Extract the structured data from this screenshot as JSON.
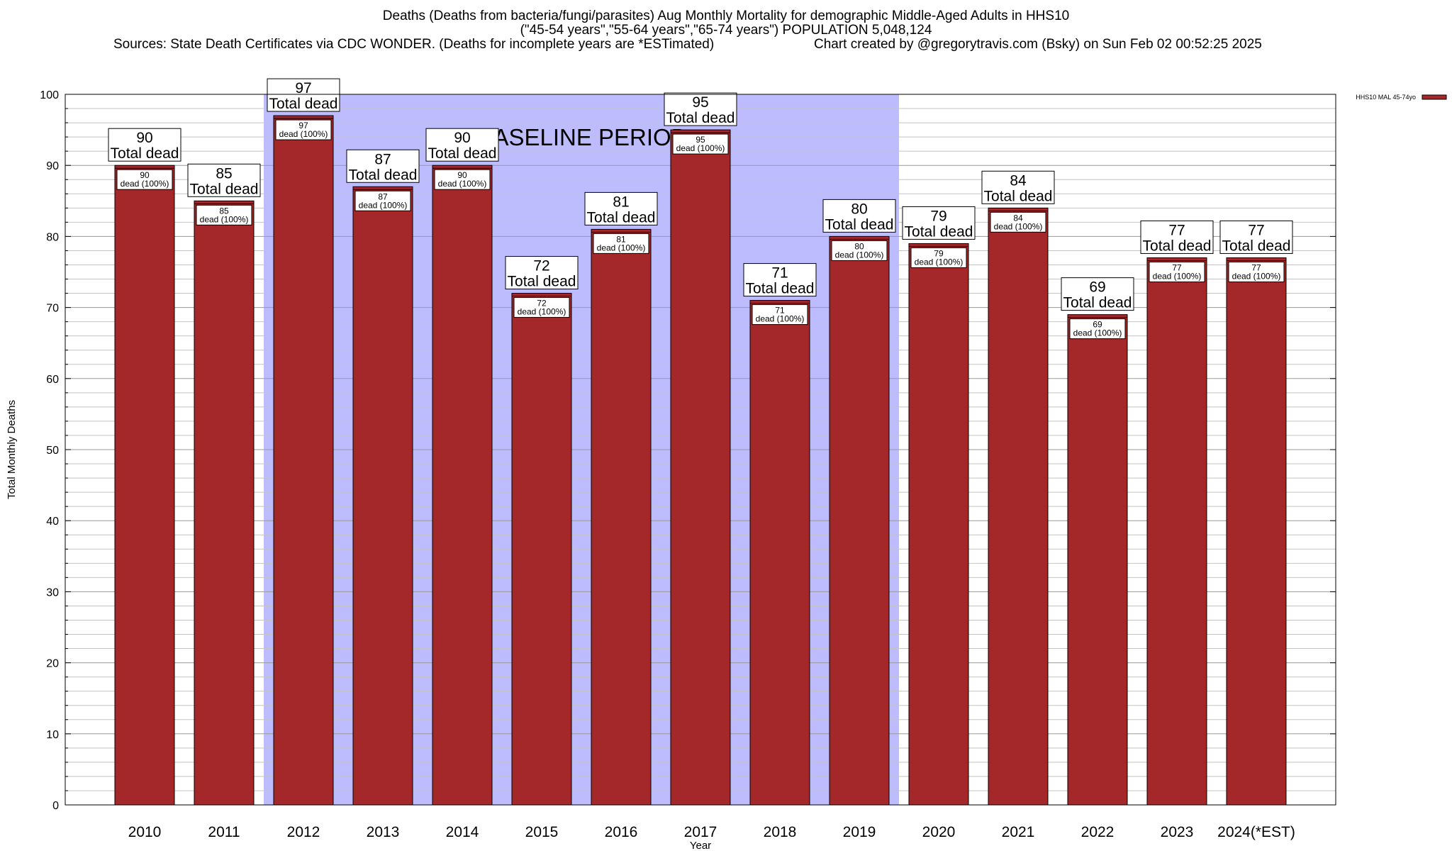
{
  "title": {
    "line1": "Deaths (Deaths from bacteria/fungi/parasites) Aug Monthly Mortality for demographic Middle-Aged Adults in HHS10",
    "line2": "(\"45-54 years\",\"55-64 years\",\"65-74 years\") POPULATION 5,048,124",
    "source": "Sources: State Death Certificates via CDC WONDER. (Deaths for incomplete years are *ESTimated)",
    "credit": "Chart created by @gregorytravis.com (Bsky) on Sun Feb 02 00:52:25 2025"
  },
  "chart_data": {
    "type": "bar",
    "categories": [
      "2010",
      "2011",
      "2012",
      "2013",
      "2014",
      "2015",
      "2016",
      "2017",
      "2018",
      "2019",
      "2020",
      "2021",
      "2022",
      "2023",
      "2024(*EST)"
    ],
    "series": [
      {
        "name": "HHS10 MAL 45-74yo",
        "values": [
          90,
          85,
          97,
          87,
          90,
          72,
          81,
          95,
          71,
          80,
          79,
          84,
          69,
          77,
          77
        ],
        "color": "#a4282a"
      }
    ],
    "total_label_suffix": "Total dead",
    "bar_label_suffix": "dead (100%)",
    "xlabel": "Year",
    "ylabel": "Total Monthly Deaths",
    "ylim": [
      0,
      100
    ],
    "yticks": [
      0,
      10,
      20,
      30,
      40,
      50,
      60,
      70,
      80,
      90,
      100
    ],
    "grid": true,
    "legend_position": "top-right",
    "baseline": {
      "label": "BASELINE PERIOD",
      "from": "2012",
      "to": "2019",
      "color": "#bcbcff"
    }
  }
}
